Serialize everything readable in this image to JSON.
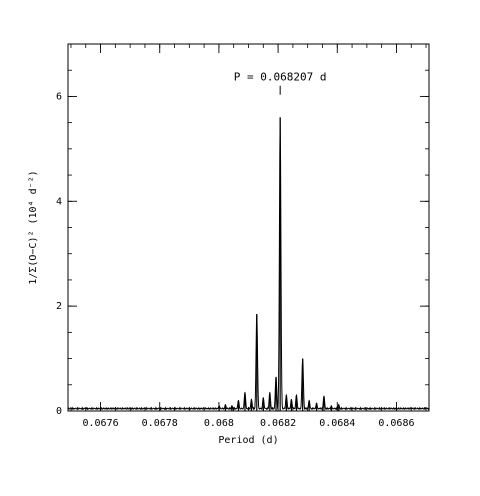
{
  "chart_data": {
    "type": "line",
    "title": "",
    "xlabel": "Period (d)",
    "ylabel": "1/Σ(O−C)² (10⁴ d⁻²)",
    "xlim": [
      0.06749,
      0.06871
    ],
    "ylim": [
      0,
      7
    ],
    "x_ticks": [
      {
        "value": 0.0676,
        "label": "0.0676"
      },
      {
        "value": 0.0678,
        "label": "0.0678"
      },
      {
        "value": 0.068,
        "label": "0.068"
      },
      {
        "value": 0.0682,
        "label": "0.0682"
      },
      {
        "value": 0.0684,
        "label": "0.0684"
      },
      {
        "value": 0.0686,
        "label": "0.0686"
      }
    ],
    "x_minor_step": 5e-05,
    "y_ticks": [
      {
        "value": 0,
        "label": "0"
      },
      {
        "value": 2,
        "label": "2"
      },
      {
        "value": 4,
        "label": "4"
      },
      {
        "value": 6,
        "label": "6"
      }
    ],
    "y_minor_step": 0.5,
    "baseline_noise": 0.06,
    "peaks": [
      {
        "x": 0.068001,
        "y": 0.1
      },
      {
        "x": 0.068022,
        "y": 0.12
      },
      {
        "x": 0.068044,
        "y": 0.1
      },
      {
        "x": 0.068066,
        "y": 0.2
      },
      {
        "x": 0.068088,
        "y": 0.35
      },
      {
        "x": 0.06811,
        "y": 0.22
      },
      {
        "x": 0.068128,
        "y": 1.85
      },
      {
        "x": 0.06815,
        "y": 0.25
      },
      {
        "x": 0.068172,
        "y": 0.35
      },
      {
        "x": 0.068193,
        "y": 0.65
      },
      {
        "x": 0.068207,
        "y": 5.6
      },
      {
        "x": 0.068228,
        "y": 0.3
      },
      {
        "x": 0.068245,
        "y": 0.22
      },
      {
        "x": 0.068262,
        "y": 0.3
      },
      {
        "x": 0.068283,
        "y": 1.0
      },
      {
        "x": 0.068305,
        "y": 0.2
      },
      {
        "x": 0.06833,
        "y": 0.15
      },
      {
        "x": 0.068355,
        "y": 0.28
      },
      {
        "x": 0.06838,
        "y": 0.1
      },
      {
        "x": 0.068405,
        "y": 0.12
      }
    ],
    "annotations": [
      {
        "text": "P = 0.068207 d",
        "x": 0.068207,
        "y": 6.3
      }
    ],
    "grid": false,
    "legend": "none"
  }
}
